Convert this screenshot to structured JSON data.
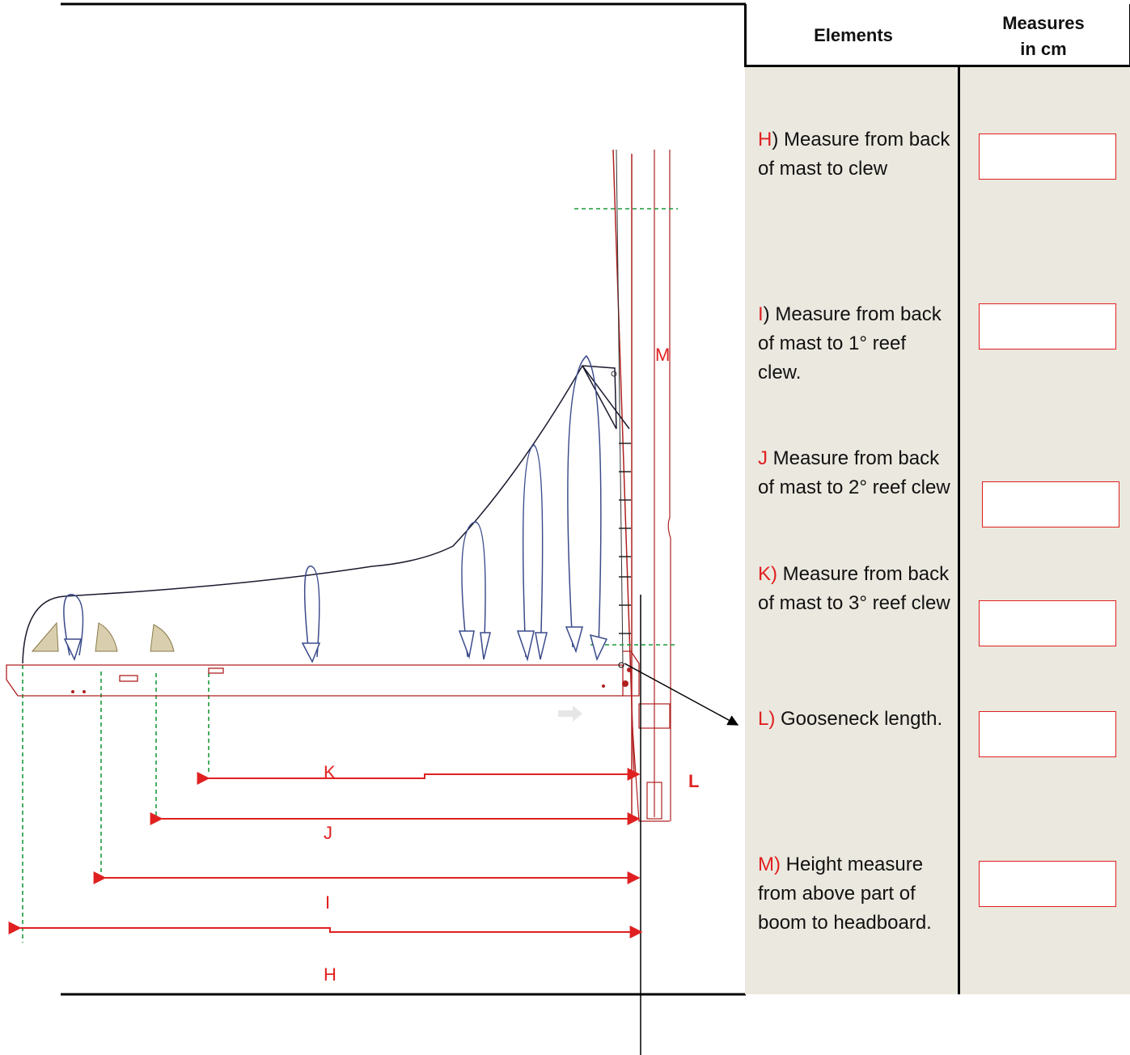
{
  "table": {
    "header_elements": "Elements",
    "header_measures": "Measures\nin cm",
    "rows": [
      {
        "code": "H",
        "sep": ")",
        "text": " Measure from back of mast to clew"
      },
      {
        "code": "I",
        "sep": ")",
        "text": " Measure from back of mast to 1° reef clew."
      },
      {
        "code": "J",
        "sep": "",
        "text": " Measure from back of mast to 2° reef clew"
      },
      {
        "code": " K)",
        "sep": "",
        "text": " Measure  from back of mast to 3° reef clew"
      },
      {
        "code": "L)",
        "sep": "",
        "text": " Gooseneck length."
      },
      {
        "code": "M)",
        "sep": "",
        "text": " Height measure from above part of boom to headboard."
      }
    ]
  },
  "diagram": {
    "labels": {
      "K": "K",
      "J": "J",
      "I": "I",
      "H": "H",
      "L": "L",
      "M": "M"
    },
    "colors": {
      "dimension": "#e02020",
      "boom": "#b02020",
      "guide": "#1a9a3a",
      "sail": "#1a1a2e",
      "arrows": "#3a4a8a",
      "table_bg": "#ebe8df"
    }
  }
}
